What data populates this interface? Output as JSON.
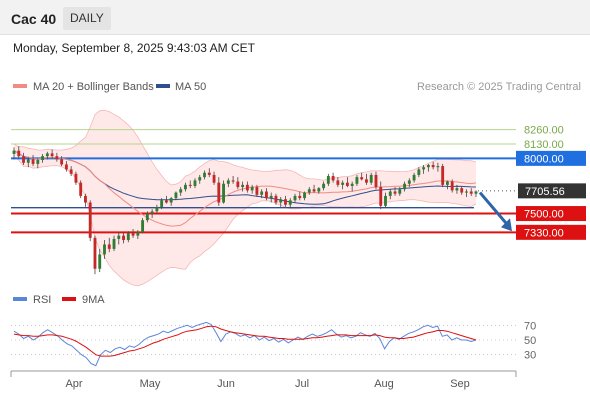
{
  "header": {
    "symbol": "Cac 40",
    "period": "DAILY"
  },
  "datetime": "Monday, September 8, 2025 9:43:03 AM CET",
  "legend": [
    {
      "label": "MA 20 + Bollinger Bands",
      "color": "#f28b82"
    },
    {
      "label": "MA 50",
      "color": "#2f4f8f"
    }
  ],
  "copyright": "Research © 2025 Trading Central",
  "chart_data": [
    {
      "type": "candlestick",
      "x_ticks": [
        "Apr",
        "May",
        "Jun",
        "Jul",
        "Aug",
        "Sep"
      ],
      "ylim": [
        6880,
        8420
      ],
      "levels": [
        {
          "value": 8260.0,
          "label": "8260.00",
          "kind": "resistance-minor",
          "color": "#b5d68c"
        },
        {
          "value": 8130.0,
          "label": "8130.00",
          "kind": "resistance-minor",
          "color": "#b5d68c"
        },
        {
          "value": 8000.0,
          "label": "8000.00",
          "kind": "resistance",
          "color": "#1f6fe0"
        },
        {
          "value": 7705.56,
          "label": "7705.56",
          "kind": "last-price",
          "color": "#333333"
        },
        {
          "value": 7500.0,
          "label": "7500.00",
          "kind": "support",
          "color": "#dd1111"
        },
        {
          "value": 7330.0,
          "label": "7330.00",
          "kind": "support",
          "color": "#dd1111"
        }
      ],
      "ma50_level_line": 7553,
      "forecast_arrow": {
        "from": 7690,
        "to": 7340,
        "color": "#2f64a8"
      },
      "candles": [
        {
          "o": 8040,
          "h": 8100,
          "l": 7990,
          "c": 8070
        },
        {
          "o": 8070,
          "h": 8110,
          "l": 8000,
          "c": 8020
        },
        {
          "o": 8020,
          "h": 8050,
          "l": 7940,
          "c": 7960
        },
        {
          "o": 7960,
          "h": 8010,
          "l": 7920,
          "c": 7990
        },
        {
          "o": 7990,
          "h": 8030,
          "l": 7930,
          "c": 7950
        },
        {
          "o": 7950,
          "h": 8000,
          "l": 7910,
          "c": 7985
        },
        {
          "o": 7985,
          "h": 8040,
          "l": 7960,
          "c": 8020
        },
        {
          "o": 8020,
          "h": 8060,
          "l": 7990,
          "c": 8045
        },
        {
          "o": 8045,
          "h": 8080,
          "l": 8000,
          "c": 8020
        },
        {
          "o": 8020,
          "h": 8050,
          "l": 7970,
          "c": 7990
        },
        {
          "o": 7990,
          "h": 8020,
          "l": 7930,
          "c": 7945
        },
        {
          "o": 7945,
          "h": 7975,
          "l": 7880,
          "c": 7900
        },
        {
          "o": 7900,
          "h": 7930,
          "l": 7840,
          "c": 7860
        },
        {
          "o": 7860,
          "h": 7880,
          "l": 7760,
          "c": 7780
        },
        {
          "o": 7780,
          "h": 7800,
          "l": 7640,
          "c": 7660
        },
        {
          "o": 7660,
          "h": 7680,
          "l": 7560,
          "c": 7600
        },
        {
          "o": 7600,
          "h": 7620,
          "l": 7250,
          "c": 7280
        },
        {
          "o": 7280,
          "h": 7300,
          "l": 6950,
          "c": 7000
        },
        {
          "o": 7000,
          "h": 7180,
          "l": 6970,
          "c": 7130
        },
        {
          "o": 7130,
          "h": 7260,
          "l": 7090,
          "c": 7220
        },
        {
          "o": 7220,
          "h": 7280,
          "l": 7150,
          "c": 7180
        },
        {
          "o": 7180,
          "h": 7300,
          "l": 7160,
          "c": 7270
        },
        {
          "o": 7270,
          "h": 7330,
          "l": 7220,
          "c": 7300
        },
        {
          "o": 7300,
          "h": 7330,
          "l": 7230,
          "c": 7260
        },
        {
          "o": 7260,
          "h": 7340,
          "l": 7240,
          "c": 7320
        },
        {
          "o": 7320,
          "h": 7360,
          "l": 7280,
          "c": 7300
        },
        {
          "o": 7300,
          "h": 7350,
          "l": 7270,
          "c": 7330
        },
        {
          "o": 7330,
          "h": 7460,
          "l": 7320,
          "c": 7440
        },
        {
          "o": 7440,
          "h": 7520,
          "l": 7420,
          "c": 7500
        },
        {
          "o": 7500,
          "h": 7540,
          "l": 7460,
          "c": 7520
        },
        {
          "o": 7520,
          "h": 7580,
          "l": 7500,
          "c": 7560
        },
        {
          "o": 7560,
          "h": 7640,
          "l": 7540,
          "c": 7620
        },
        {
          "o": 7620,
          "h": 7660,
          "l": 7590,
          "c": 7600
        },
        {
          "o": 7600,
          "h": 7650,
          "l": 7570,
          "c": 7640
        },
        {
          "o": 7640,
          "h": 7700,
          "l": 7620,
          "c": 7690
        },
        {
          "o": 7690,
          "h": 7740,
          "l": 7660,
          "c": 7720
        },
        {
          "o": 7720,
          "h": 7780,
          "l": 7700,
          "c": 7760
        },
        {
          "o": 7760,
          "h": 7800,
          "l": 7730,
          "c": 7750
        },
        {
          "o": 7750,
          "h": 7820,
          "l": 7730,
          "c": 7800
        },
        {
          "o": 7800,
          "h": 7850,
          "l": 7770,
          "c": 7830
        },
        {
          "o": 7830,
          "h": 7890,
          "l": 7810,
          "c": 7870
        },
        {
          "o": 7870,
          "h": 7910,
          "l": 7830,
          "c": 7850
        },
        {
          "o": 7850,
          "h": 7880,
          "l": 7760,
          "c": 7780
        },
        {
          "o": 7780,
          "h": 7830,
          "l": 7570,
          "c": 7600
        },
        {
          "o": 7600,
          "h": 7800,
          "l": 7590,
          "c": 7770
        },
        {
          "o": 7770,
          "h": 7820,
          "l": 7740,
          "c": 7800
        },
        {
          "o": 7800,
          "h": 7840,
          "l": 7770,
          "c": 7790
        },
        {
          "o": 7790,
          "h": 7830,
          "l": 7720,
          "c": 7740
        },
        {
          "o": 7740,
          "h": 7790,
          "l": 7700,
          "c": 7760
        },
        {
          "o": 7760,
          "h": 7790,
          "l": 7690,
          "c": 7710
        },
        {
          "o": 7710,
          "h": 7760,
          "l": 7680,
          "c": 7740
        },
        {
          "o": 7740,
          "h": 7760,
          "l": 7650,
          "c": 7670
        },
        {
          "o": 7670,
          "h": 7720,
          "l": 7640,
          "c": 7700
        },
        {
          "o": 7700,
          "h": 7730,
          "l": 7620,
          "c": 7640
        },
        {
          "o": 7640,
          "h": 7690,
          "l": 7600,
          "c": 7660
        },
        {
          "o": 7660,
          "h": 7680,
          "l": 7580,
          "c": 7600
        },
        {
          "o": 7600,
          "h": 7650,
          "l": 7560,
          "c": 7630
        },
        {
          "o": 7630,
          "h": 7660,
          "l": 7560,
          "c": 7580
        },
        {
          "o": 7580,
          "h": 7640,
          "l": 7550,
          "c": 7620
        },
        {
          "o": 7620,
          "h": 7680,
          "l": 7600,
          "c": 7660
        },
        {
          "o": 7660,
          "h": 7700,
          "l": 7620,
          "c": 7640
        },
        {
          "o": 7640,
          "h": 7700,
          "l": 7620,
          "c": 7690
        },
        {
          "o": 7690,
          "h": 7740,
          "l": 7670,
          "c": 7720
        },
        {
          "o": 7720,
          "h": 7760,
          "l": 7690,
          "c": 7700
        },
        {
          "o": 7700,
          "h": 7740,
          "l": 7680,
          "c": 7730
        },
        {
          "o": 7730,
          "h": 7790,
          "l": 7710,
          "c": 7770
        },
        {
          "o": 7770,
          "h": 7860,
          "l": 7750,
          "c": 7840
        },
        {
          "o": 7840,
          "h": 7870,
          "l": 7780,
          "c": 7800
        },
        {
          "o": 7800,
          "h": 7830,
          "l": 7740,
          "c": 7760
        },
        {
          "o": 7760,
          "h": 7800,
          "l": 7720,
          "c": 7780
        },
        {
          "o": 7780,
          "h": 7830,
          "l": 7740,
          "c": 7750
        },
        {
          "o": 7750,
          "h": 7790,
          "l": 7700,
          "c": 7770
        },
        {
          "o": 7770,
          "h": 7850,
          "l": 7750,
          "c": 7830
        },
        {
          "o": 7830,
          "h": 7870,
          "l": 7800,
          "c": 7810
        },
        {
          "o": 7810,
          "h": 7860,
          "l": 7760,
          "c": 7780
        },
        {
          "o": 7780,
          "h": 7870,
          "l": 7760,
          "c": 7850
        },
        {
          "o": 7850,
          "h": 7880,
          "l": 7720,
          "c": 7740
        },
        {
          "o": 7740,
          "h": 7790,
          "l": 7540,
          "c": 7570
        },
        {
          "o": 7570,
          "h": 7690,
          "l": 7550,
          "c": 7660
        },
        {
          "o": 7660,
          "h": 7720,
          "l": 7630,
          "c": 7700
        },
        {
          "o": 7700,
          "h": 7740,
          "l": 7660,
          "c": 7680
        },
        {
          "o": 7680,
          "h": 7740,
          "l": 7660,
          "c": 7720
        },
        {
          "o": 7720,
          "h": 7790,
          "l": 7700,
          "c": 7770
        },
        {
          "o": 7770,
          "h": 7820,
          "l": 7740,
          "c": 7800
        },
        {
          "o": 7800,
          "h": 7870,
          "l": 7780,
          "c": 7850
        },
        {
          "o": 7850,
          "h": 7920,
          "l": 7830,
          "c": 7900
        },
        {
          "o": 7900,
          "h": 7940,
          "l": 7860,
          "c": 7920
        },
        {
          "o": 7920,
          "h": 7950,
          "l": 7880,
          "c": 7940
        },
        {
          "o": 7940,
          "h": 7970,
          "l": 7900,
          "c": 7920
        },
        {
          "o": 7920,
          "h": 7960,
          "l": 7880,
          "c": 7930
        },
        {
          "o": 7930,
          "h": 7950,
          "l": 7740,
          "c": 7760
        },
        {
          "o": 7760,
          "h": 7800,
          "l": 7720,
          "c": 7790
        },
        {
          "o": 7790,
          "h": 7810,
          "l": 7690,
          "c": 7710
        },
        {
          "o": 7710,
          "h": 7760,
          "l": 7680,
          "c": 7730
        },
        {
          "o": 7730,
          "h": 7750,
          "l": 7670,
          "c": 7690
        },
        {
          "o": 7690,
          "h": 7720,
          "l": 7650,
          "c": 7700
        },
        {
          "o": 7700,
          "h": 7730,
          "l": 7660,
          "c": 7680
        },
        {
          "o": 7680,
          "h": 7710,
          "l": 7650,
          "c": 7700
        }
      ]
    },
    {
      "type": "line",
      "legend": [
        "RSI",
        "9MA"
      ],
      "series_colors": {
        "rsi": "#5b86d8",
        "ma": "#dd1111"
      },
      "ylim": [
        20,
        80
      ],
      "y_ticks": [
        "70",
        "50",
        "30"
      ],
      "rsi": [
        62,
        58,
        52,
        55,
        50,
        54,
        60,
        64,
        60,
        56,
        50,
        45,
        42,
        36,
        30,
        26,
        18,
        15,
        30,
        36,
        33,
        38,
        40,
        37,
        42,
        40,
        44,
        50,
        54,
        56,
        58,
        62,
        60,
        63,
        66,
        68,
        70,
        67,
        70,
        72,
        74,
        71,
        60,
        48,
        58,
        61,
        59,
        55,
        57,
        53,
        56,
        50,
        54,
        49,
        52,
        47,
        51,
        46,
        50,
        54,
        51,
        55,
        58,
        55,
        57,
        60,
        64,
        58,
        54,
        56,
        53,
        55,
        60,
        57,
        55,
        59,
        52,
        38,
        48,
        53,
        51,
        55,
        59,
        61,
        64,
        68,
        70,
        67,
        69,
        55,
        57,
        50,
        53,
        50,
        50,
        48,
        50
      ],
      "ma": [
        58,
        57,
        56,
        56,
        55,
        55,
        56,
        57,
        57,
        56,
        55,
        53,
        51,
        48,
        44,
        40,
        35,
        30,
        28,
        28,
        28,
        29,
        31,
        33,
        35,
        36,
        38,
        40,
        43,
        46,
        48,
        51,
        53,
        55,
        57,
        60,
        62,
        63,
        64,
        66,
        68,
        69,
        68,
        65,
        63,
        61,
        60,
        59,
        58,
        57,
        56,
        55,
        55,
        54,
        53,
        52,
        52,
        51,
        51,
        51,
        51,
        52,
        53,
        53,
        54,
        55,
        56,
        57,
        57,
        57,
        56,
        56,
        56,
        56,
        56,
        57,
        56,
        54,
        53,
        53,
        52,
        52,
        53,
        54,
        56,
        58,
        60,
        61,
        63,
        63,
        62,
        60,
        58,
        56,
        54,
        52,
        50
      ]
    }
  ]
}
